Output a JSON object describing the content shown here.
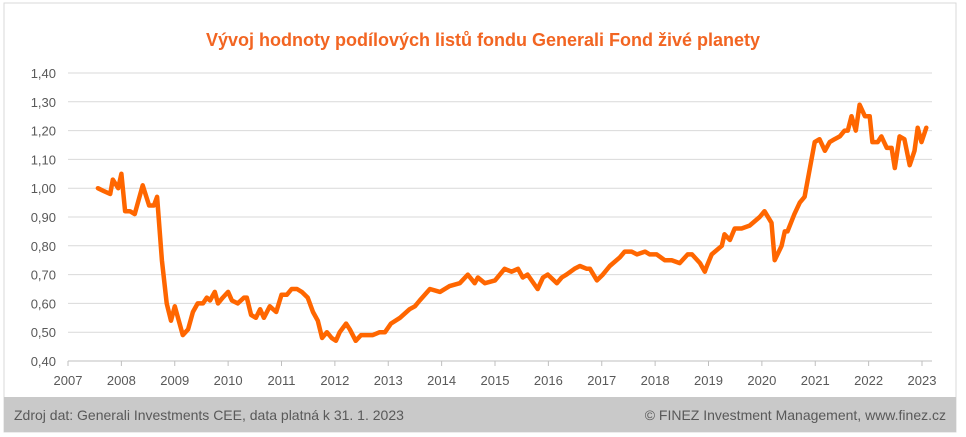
{
  "chart_data": {
    "type": "line",
    "title": "Vývoj hodnoty podílových listů fondu Generali Fond živé planety",
    "xlabel": "",
    "ylabel": "",
    "xlim": [
      2007,
      2023
    ],
    "ylim": [
      0.4,
      1.4
    ],
    "grid": true,
    "x_ticks": [
      "2007",
      "2008",
      "2009",
      "2010",
      "2011",
      "2012",
      "2013",
      "2014",
      "2015",
      "2016",
      "2017",
      "2018",
      "2019",
      "2020",
      "2021",
      "2022",
      "2023"
    ],
    "y_ticks": [
      "0,40",
      "0,50",
      "0,60",
      "0,70",
      "0,80",
      "0,90",
      "1,00",
      "1,10",
      "1,20",
      "1,30",
      "1,40"
    ],
    "series": [
      {
        "name": "Generali Fond živé planety",
        "color": "#ff6600",
        "points": [
          [
            2007.56,
            1.0
          ],
          [
            2007.67,
            0.99
          ],
          [
            2007.79,
            0.98
          ],
          [
            2007.84,
            1.03
          ],
          [
            2007.94,
            1.0
          ],
          [
            2008.0,
            1.05
          ],
          [
            2008.07,
            0.92
          ],
          [
            2008.16,
            0.92
          ],
          [
            2008.25,
            0.91
          ],
          [
            2008.4,
            1.01
          ],
          [
            2008.52,
            0.94
          ],
          [
            2008.61,
            0.94
          ],
          [
            2008.67,
            0.97
          ],
          [
            2008.76,
            0.75
          ],
          [
            2008.85,
            0.6
          ],
          [
            2008.93,
            0.54
          ],
          [
            2009.0,
            0.59
          ],
          [
            2009.15,
            0.49
          ],
          [
            2009.25,
            0.51
          ],
          [
            2009.34,
            0.57
          ],
          [
            2009.43,
            0.6
          ],
          [
            2009.53,
            0.6
          ],
          [
            2009.6,
            0.62
          ],
          [
            2009.66,
            0.61
          ],
          [
            2009.75,
            0.64
          ],
          [
            2009.81,
            0.6
          ],
          [
            2009.9,
            0.62
          ],
          [
            2010.0,
            0.64
          ],
          [
            2010.07,
            0.61
          ],
          [
            2010.18,
            0.6
          ],
          [
            2010.3,
            0.62
          ],
          [
            2010.35,
            0.62
          ],
          [
            2010.43,
            0.56
          ],
          [
            2010.52,
            0.55
          ],
          [
            2010.6,
            0.58
          ],
          [
            2010.67,
            0.55
          ],
          [
            2010.78,
            0.59
          ],
          [
            2010.9,
            0.57
          ],
          [
            2011.0,
            0.63
          ],
          [
            2011.1,
            0.63
          ],
          [
            2011.19,
            0.65
          ],
          [
            2011.29,
            0.65
          ],
          [
            2011.38,
            0.64
          ],
          [
            2011.49,
            0.62
          ],
          [
            2011.59,
            0.57
          ],
          [
            2011.68,
            0.54
          ],
          [
            2011.76,
            0.48
          ],
          [
            2011.85,
            0.5
          ],
          [
            2011.94,
            0.48
          ],
          [
            2012.02,
            0.47
          ],
          [
            2012.09,
            0.5
          ],
          [
            2012.21,
            0.53
          ],
          [
            2012.28,
            0.51
          ],
          [
            2012.39,
            0.47
          ],
          [
            2012.49,
            0.49
          ],
          [
            2012.6,
            0.49
          ],
          [
            2012.71,
            0.49
          ],
          [
            2012.84,
            0.5
          ],
          [
            2012.94,
            0.5
          ],
          [
            2013.05,
            0.53
          ],
          [
            2013.22,
            0.55
          ],
          [
            2013.4,
            0.58
          ],
          [
            2013.5,
            0.59
          ],
          [
            2013.59,
            0.61
          ],
          [
            2013.78,
            0.65
          ],
          [
            2013.97,
            0.64
          ],
          [
            2014.15,
            0.66
          ],
          [
            2014.34,
            0.67
          ],
          [
            2014.49,
            0.7
          ],
          [
            2014.62,
            0.67
          ],
          [
            2014.68,
            0.69
          ],
          [
            2014.81,
            0.67
          ],
          [
            2015.0,
            0.68
          ],
          [
            2015.18,
            0.72
          ],
          [
            2015.31,
            0.71
          ],
          [
            2015.43,
            0.72
          ],
          [
            2015.52,
            0.69
          ],
          [
            2015.61,
            0.7
          ],
          [
            2015.76,
            0.66
          ],
          [
            2015.8,
            0.65
          ],
          [
            2015.9,
            0.69
          ],
          [
            2015.99,
            0.7
          ],
          [
            2016.16,
            0.67
          ],
          [
            2016.25,
            0.69
          ],
          [
            2016.34,
            0.7
          ],
          [
            2016.49,
            0.72
          ],
          [
            2016.59,
            0.73
          ],
          [
            2016.72,
            0.72
          ],
          [
            2016.78,
            0.72
          ],
          [
            2016.91,
            0.68
          ],
          [
            2017.02,
            0.7
          ],
          [
            2017.15,
            0.73
          ],
          [
            2017.34,
            0.76
          ],
          [
            2017.43,
            0.78
          ],
          [
            2017.56,
            0.78
          ],
          [
            2017.66,
            0.77
          ],
          [
            2017.81,
            0.78
          ],
          [
            2017.9,
            0.77
          ],
          [
            2018.03,
            0.77
          ],
          [
            2018.18,
            0.75
          ],
          [
            2018.31,
            0.75
          ],
          [
            2018.46,
            0.74
          ],
          [
            2018.61,
            0.77
          ],
          [
            2018.69,
            0.77
          ],
          [
            2018.84,
            0.74
          ],
          [
            2018.93,
            0.71
          ],
          [
            2018.97,
            0.73
          ],
          [
            2019.06,
            0.77
          ],
          [
            2019.25,
            0.8
          ],
          [
            2019.3,
            0.84
          ],
          [
            2019.4,
            0.82
          ],
          [
            2019.49,
            0.86
          ],
          [
            2019.62,
            0.86
          ],
          [
            2019.77,
            0.87
          ],
          [
            2019.96,
            0.9
          ],
          [
            2020.05,
            0.92
          ],
          [
            2020.18,
            0.88
          ],
          [
            2020.24,
            0.75
          ],
          [
            2020.37,
            0.8
          ],
          [
            2020.43,
            0.85
          ],
          [
            2020.48,
            0.85
          ],
          [
            2020.61,
            0.91
          ],
          [
            2020.71,
            0.95
          ],
          [
            2020.8,
            0.97
          ],
          [
            2020.93,
            1.1
          ],
          [
            2020.99,
            1.16
          ],
          [
            2021.08,
            1.17
          ],
          [
            2021.18,
            1.13
          ],
          [
            2021.27,
            1.16
          ],
          [
            2021.36,
            1.17
          ],
          [
            2021.46,
            1.18
          ],
          [
            2021.55,
            1.2
          ],
          [
            2021.61,
            1.2
          ],
          [
            2021.68,
            1.25
          ],
          [
            2021.76,
            1.2
          ],
          [
            2021.83,
            1.29
          ],
          [
            2021.93,
            1.25
          ],
          [
            2022.02,
            1.25
          ],
          [
            2022.07,
            1.16
          ],
          [
            2022.17,
            1.16
          ],
          [
            2022.24,
            1.18
          ],
          [
            2022.34,
            1.14
          ],
          [
            2022.43,
            1.14
          ],
          [
            2022.49,
            1.07
          ],
          [
            2022.58,
            1.18
          ],
          [
            2022.67,
            1.17
          ],
          [
            2022.77,
            1.08
          ],
          [
            2022.86,
            1.13
          ],
          [
            2022.92,
            1.21
          ],
          [
            2022.99,
            1.16
          ],
          [
            2023.08,
            1.21
          ]
        ]
      }
    ]
  },
  "colors": {
    "title": "#f26522",
    "grid": "#d9d9d9",
    "axis_text": "#595959",
    "footer_bg": "#c9c9c9"
  },
  "footer": {
    "source": "Zdroj dat: Generali Investments CEE, data platná k 31. 1. 2023",
    "copyright": "© FINEZ Investment Management, www.finez.cz"
  }
}
